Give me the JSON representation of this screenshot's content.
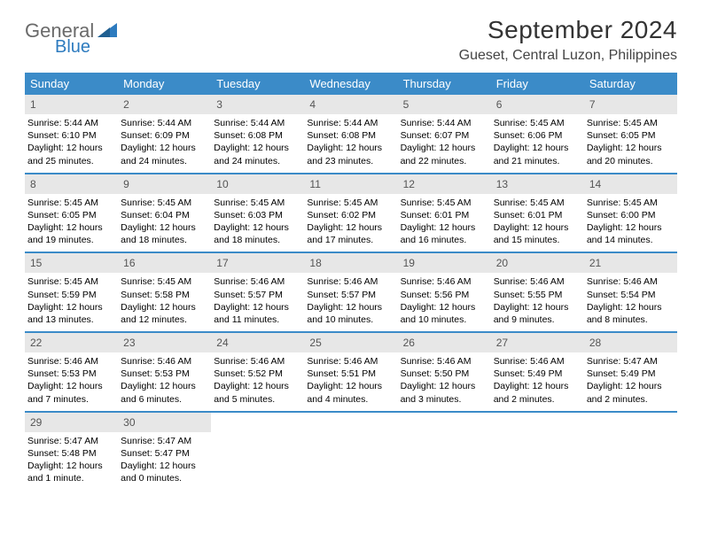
{
  "logo": {
    "text1": "General",
    "text2": "Blue"
  },
  "title": "September 2024",
  "location": "Gueset, Central Luzon, Philippines",
  "colors": {
    "header_bar": "#3b8bc8",
    "daynum_bg": "#e7e7e7",
    "text": "#000000",
    "title_text": "#333333",
    "logo_gray": "#6a6a6a",
    "logo_blue": "#2d7bbf",
    "background": "#ffffff"
  },
  "typography": {
    "title_fontsize": 28,
    "location_fontsize": 16,
    "weekday_fontsize": 13,
    "daynum_fontsize": 12,
    "body_fontsize": 10.5
  },
  "weekdays": [
    "Sunday",
    "Monday",
    "Tuesday",
    "Wednesday",
    "Thursday",
    "Friday",
    "Saturday"
  ],
  "weeks": [
    [
      {
        "n": "1",
        "sr": "Sunrise: 5:44 AM",
        "ss": "Sunset: 6:10 PM",
        "d1": "Daylight: 12 hours",
        "d2": "and 25 minutes."
      },
      {
        "n": "2",
        "sr": "Sunrise: 5:44 AM",
        "ss": "Sunset: 6:09 PM",
        "d1": "Daylight: 12 hours",
        "d2": "and 24 minutes."
      },
      {
        "n": "3",
        "sr": "Sunrise: 5:44 AM",
        "ss": "Sunset: 6:08 PM",
        "d1": "Daylight: 12 hours",
        "d2": "and 24 minutes."
      },
      {
        "n": "4",
        "sr": "Sunrise: 5:44 AM",
        "ss": "Sunset: 6:08 PM",
        "d1": "Daylight: 12 hours",
        "d2": "and 23 minutes."
      },
      {
        "n": "5",
        "sr": "Sunrise: 5:44 AM",
        "ss": "Sunset: 6:07 PM",
        "d1": "Daylight: 12 hours",
        "d2": "and 22 minutes."
      },
      {
        "n": "6",
        "sr": "Sunrise: 5:45 AM",
        "ss": "Sunset: 6:06 PM",
        "d1": "Daylight: 12 hours",
        "d2": "and 21 minutes."
      },
      {
        "n": "7",
        "sr": "Sunrise: 5:45 AM",
        "ss": "Sunset: 6:05 PM",
        "d1": "Daylight: 12 hours",
        "d2": "and 20 minutes."
      }
    ],
    [
      {
        "n": "8",
        "sr": "Sunrise: 5:45 AM",
        "ss": "Sunset: 6:05 PM",
        "d1": "Daylight: 12 hours",
        "d2": "and 19 minutes."
      },
      {
        "n": "9",
        "sr": "Sunrise: 5:45 AM",
        "ss": "Sunset: 6:04 PM",
        "d1": "Daylight: 12 hours",
        "d2": "and 18 minutes."
      },
      {
        "n": "10",
        "sr": "Sunrise: 5:45 AM",
        "ss": "Sunset: 6:03 PM",
        "d1": "Daylight: 12 hours",
        "d2": "and 18 minutes."
      },
      {
        "n": "11",
        "sr": "Sunrise: 5:45 AM",
        "ss": "Sunset: 6:02 PM",
        "d1": "Daylight: 12 hours",
        "d2": "and 17 minutes."
      },
      {
        "n": "12",
        "sr": "Sunrise: 5:45 AM",
        "ss": "Sunset: 6:01 PM",
        "d1": "Daylight: 12 hours",
        "d2": "and 16 minutes."
      },
      {
        "n": "13",
        "sr": "Sunrise: 5:45 AM",
        "ss": "Sunset: 6:01 PM",
        "d1": "Daylight: 12 hours",
        "d2": "and 15 minutes."
      },
      {
        "n": "14",
        "sr": "Sunrise: 5:45 AM",
        "ss": "Sunset: 6:00 PM",
        "d1": "Daylight: 12 hours",
        "d2": "and 14 minutes."
      }
    ],
    [
      {
        "n": "15",
        "sr": "Sunrise: 5:45 AM",
        "ss": "Sunset: 5:59 PM",
        "d1": "Daylight: 12 hours",
        "d2": "and 13 minutes."
      },
      {
        "n": "16",
        "sr": "Sunrise: 5:45 AM",
        "ss": "Sunset: 5:58 PM",
        "d1": "Daylight: 12 hours",
        "d2": "and 12 minutes."
      },
      {
        "n": "17",
        "sr": "Sunrise: 5:46 AM",
        "ss": "Sunset: 5:57 PM",
        "d1": "Daylight: 12 hours",
        "d2": "and 11 minutes."
      },
      {
        "n": "18",
        "sr": "Sunrise: 5:46 AM",
        "ss": "Sunset: 5:57 PM",
        "d1": "Daylight: 12 hours",
        "d2": "and 10 minutes."
      },
      {
        "n": "19",
        "sr": "Sunrise: 5:46 AM",
        "ss": "Sunset: 5:56 PM",
        "d1": "Daylight: 12 hours",
        "d2": "and 10 minutes."
      },
      {
        "n": "20",
        "sr": "Sunrise: 5:46 AM",
        "ss": "Sunset: 5:55 PM",
        "d1": "Daylight: 12 hours",
        "d2": "and 9 minutes."
      },
      {
        "n": "21",
        "sr": "Sunrise: 5:46 AM",
        "ss": "Sunset: 5:54 PM",
        "d1": "Daylight: 12 hours",
        "d2": "and 8 minutes."
      }
    ],
    [
      {
        "n": "22",
        "sr": "Sunrise: 5:46 AM",
        "ss": "Sunset: 5:53 PM",
        "d1": "Daylight: 12 hours",
        "d2": "and 7 minutes."
      },
      {
        "n": "23",
        "sr": "Sunrise: 5:46 AM",
        "ss": "Sunset: 5:53 PM",
        "d1": "Daylight: 12 hours",
        "d2": "and 6 minutes."
      },
      {
        "n": "24",
        "sr": "Sunrise: 5:46 AM",
        "ss": "Sunset: 5:52 PM",
        "d1": "Daylight: 12 hours",
        "d2": "and 5 minutes."
      },
      {
        "n": "25",
        "sr": "Sunrise: 5:46 AM",
        "ss": "Sunset: 5:51 PM",
        "d1": "Daylight: 12 hours",
        "d2": "and 4 minutes."
      },
      {
        "n": "26",
        "sr": "Sunrise: 5:46 AM",
        "ss": "Sunset: 5:50 PM",
        "d1": "Daylight: 12 hours",
        "d2": "and 3 minutes."
      },
      {
        "n": "27",
        "sr": "Sunrise: 5:46 AM",
        "ss": "Sunset: 5:49 PM",
        "d1": "Daylight: 12 hours",
        "d2": "and 2 minutes."
      },
      {
        "n": "28",
        "sr": "Sunrise: 5:47 AM",
        "ss": "Sunset: 5:49 PM",
        "d1": "Daylight: 12 hours",
        "d2": "and 2 minutes."
      }
    ],
    [
      {
        "n": "29",
        "sr": "Sunrise: 5:47 AM",
        "ss": "Sunset: 5:48 PM",
        "d1": "Daylight: 12 hours",
        "d2": "and 1 minute."
      },
      {
        "n": "30",
        "sr": "Sunrise: 5:47 AM",
        "ss": "Sunset: 5:47 PM",
        "d1": "Daylight: 12 hours",
        "d2": "and 0 minutes."
      },
      null,
      null,
      null,
      null,
      null
    ]
  ]
}
